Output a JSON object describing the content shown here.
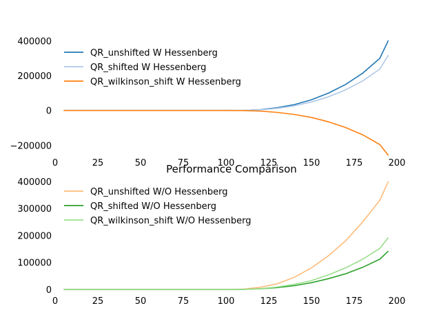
{
  "chart_data": [
    {
      "type": "line",
      "title": "",
      "xlabel": "",
      "ylabel": "",
      "xlim": [
        0,
        200
      ],
      "ylim": [
        -270000,
        430000
      ],
      "xticks": [
        0,
        25,
        50,
        75,
        100,
        125,
        150,
        175,
        200
      ],
      "yticks": [
        -200000,
        0,
        200000,
        400000
      ],
      "ytick_labels": [
        "−200000",
        "0",
        "200000",
        "400000"
      ],
      "grid": false,
      "legend": "upper-left",
      "x": [
        5,
        25,
        50,
        75,
        100,
        110,
        120,
        130,
        140,
        150,
        160,
        170,
        180,
        190,
        195
      ],
      "series": [
        {
          "name": "QR_unshifted W Hessenberg",
          "color": "#1f77b4",
          "values": [
            0,
            0,
            0,
            0,
            0,
            300,
            5000,
            16000,
            34000,
            62000,
            100000,
            150000,
            215000,
            300000,
            403000
          ]
        },
        {
          "name": "QR_shifted W Hessenberg",
          "color": "#aec7e8",
          "values": [
            0,
            0,
            0,
            0,
            0,
            250,
            4000,
            12500,
            27000,
            49000,
            79000,
            119000,
            170000,
            238000,
            318000
          ]
        },
        {
          "name": "QR_wilkinson_shift W Hessenberg",
          "color": "#ff7f0e",
          "values": [
            0,
            0,
            0,
            0,
            0,
            -200,
            -3500,
            -11000,
            -23000,
            -40000,
            -65000,
            -98000,
            -140000,
            -196000,
            -258000
          ]
        }
      ]
    },
    {
      "type": "line",
      "title": "Performance Comparison",
      "xlabel": "",
      "ylabel": "",
      "xlim": [
        0,
        200
      ],
      "ylim": [
        -5000,
        430000
      ],
      "xticks": [
        0,
        25,
        50,
        75,
        100,
        125,
        150,
        175,
        200
      ],
      "yticks": [
        0,
        100000,
        200000,
        300000,
        400000
      ],
      "ytick_labels": [
        "0",
        "100000",
        "200000",
        "300000",
        "400000"
      ],
      "grid": false,
      "legend": "upper-left",
      "x": [
        5,
        25,
        50,
        75,
        100,
        110,
        120,
        130,
        140,
        150,
        160,
        170,
        180,
        190,
        195
      ],
      "series": [
        {
          "name": "QR_unshifted W/O Hessenberg",
          "color": "#ffbb78",
          "values": [
            0,
            0,
            0,
            0,
            0,
            1000,
            8000,
            21000,
            45000,
            80000,
            125000,
            180000,
            250000,
            330000,
            400000
          ]
        },
        {
          "name": "QR_shifted W/O Hessenberg",
          "color": "#2ca02c",
          "values": [
            0,
            0,
            0,
            0,
            0,
            300,
            2500,
            7000,
            14000,
            25000,
            40000,
            58000,
            82000,
            112000,
            142000
          ]
        },
        {
          "name": "QR_wilkinson_shift W/O Hessenberg",
          "color": "#98df8a",
          "values": [
            0,
            0,
            0,
            0,
            0,
            400,
            3000,
            9000,
            19000,
            33000,
            54000,
            80000,
            112000,
            152000,
            192000
          ]
        }
      ]
    }
  ]
}
